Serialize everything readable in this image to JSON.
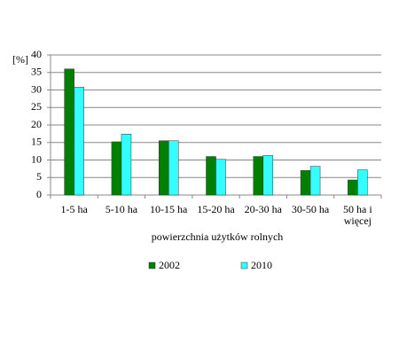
{
  "chart_data": {
    "type": "bar",
    "y_label": "[%]",
    "x_label": "powierzchnia użytków rolnych",
    "categories": [
      "1-5 ha",
      "5-10 ha",
      "10-15 ha",
      "15-20 ha",
      "20-30 ha",
      "30-50 ha",
      "50 ha i więcej"
    ],
    "series": [
      {
        "name": "2002",
        "color": "#008000",
        "values": [
          36,
          15.2,
          15.5,
          11,
          11,
          7,
          4.3
        ]
      },
      {
        "name": "2010",
        "color": "#33ffff",
        "values": [
          30.8,
          17.4,
          15.5,
          10.2,
          11.3,
          8.2,
          7.2
        ]
      }
    ],
    "ylim": [
      0,
      40
    ],
    "yticks": [
      0,
      5,
      10,
      15,
      20,
      25,
      30,
      35,
      40
    ],
    "grid": true
  }
}
